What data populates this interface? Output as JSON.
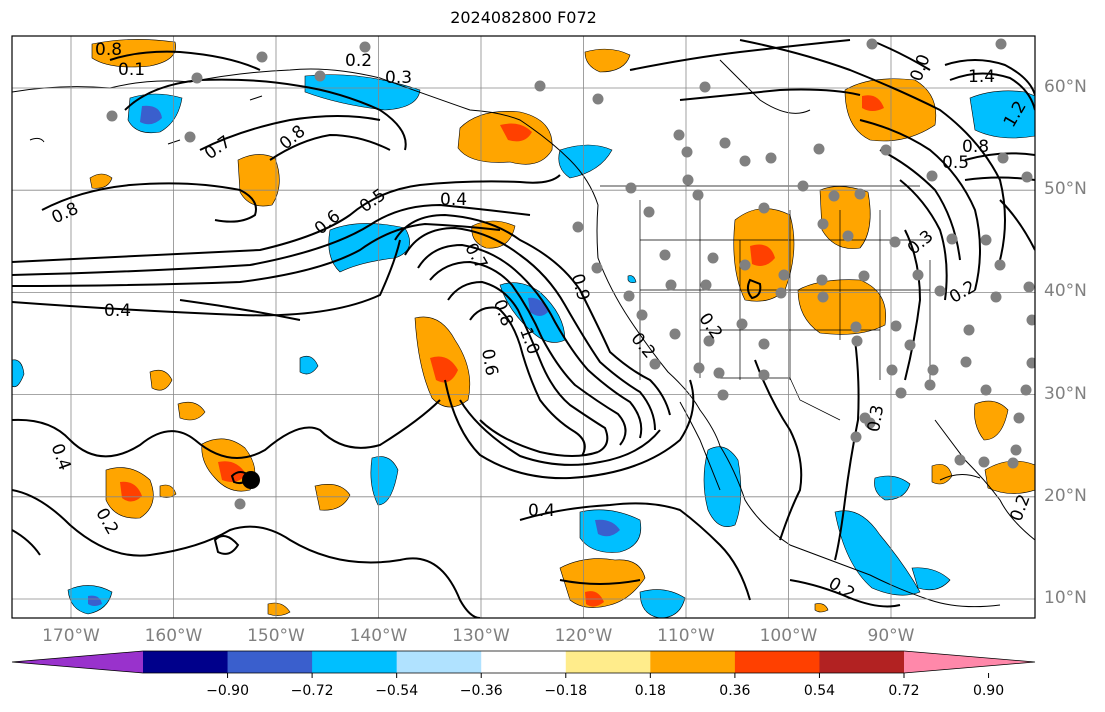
{
  "title": "2024082800 F072",
  "lat_labels": [
    {
      "text": "60°N",
      "lat": 60
    },
    {
      "text": "50°N",
      "lat": 50
    },
    {
      "text": "40°N",
      "lat": 40
    },
    {
      "text": "30°N",
      "lat": 30
    },
    {
      "text": "20°N",
      "lat": 20
    },
    {
      "text": "10°N",
      "lat": 10
    }
  ],
  "lon_labels": [
    {
      "text": "170°W",
      "lon": -170
    },
    {
      "text": "160°W",
      "lon": -160
    },
    {
      "text": "150°W",
      "lon": -150
    },
    {
      "text": "140°W",
      "lon": -140
    },
    {
      "text": "130°W",
      "lon": -130
    },
    {
      "text": "120°W",
      "lon": -120
    },
    {
      "text": "110°W",
      "lon": -110
    },
    {
      "text": "100°W",
      "lon": -100
    },
    {
      "text": "90°W",
      "lon": -90
    }
  ],
  "colorbar": {
    "ticks": [
      "−0.90",
      "−0.72",
      "−0.54",
      "−0.36",
      "−0.18",
      "0.18",
      "0.36",
      "0.54",
      "0.72",
      "0.90"
    ],
    "colors": [
      "#9932CC",
      "#00008B",
      "#3A5FCD",
      "#00BFFF",
      "#B0E2FF",
      "#FFFFFF",
      "#FFEC8B",
      "#FFA500",
      "#FF4000",
      "#B22222",
      "#FF88AA"
    ]
  },
  "contour_labels": [
    "0.8",
    "0.1",
    "0.2",
    "0.3",
    "0.7",
    "0.8",
    "0.8",
    "0.6",
    "0.5",
    "0.4",
    "0.4",
    "0.7",
    "0.8",
    "1.0",
    "0.6",
    "0.9",
    "0.2",
    "0.2",
    "0.4",
    "0.4",
    "0.2",
    "0.2",
    "1.4",
    "1.2",
    "0.8",
    "0.5",
    "0.3",
    "0.2",
    "0.3",
    "0.2",
    "0.0"
  ]
}
